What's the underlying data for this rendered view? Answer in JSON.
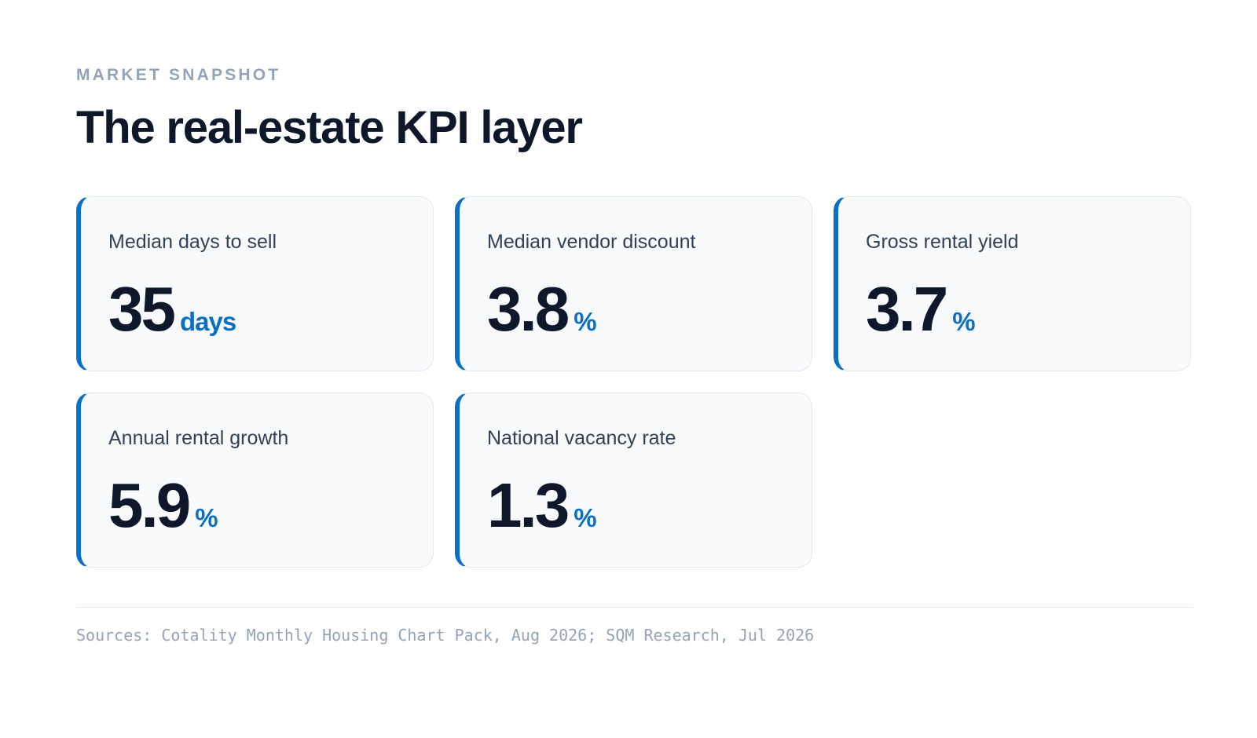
{
  "header": {
    "eyebrow": "MARKET SNAPSHOT",
    "title": "The real-estate KPI layer"
  },
  "kpis": [
    {
      "label": "Median days to sell",
      "value": "35",
      "unit": "days"
    },
    {
      "label": "Median vendor discount",
      "value": "3.8",
      "unit": "%"
    },
    {
      "label": "Gross rental yield",
      "value": "3.7",
      "unit": "%"
    },
    {
      "label": "Annual rental growth",
      "value": "5.9",
      "unit": "%"
    },
    {
      "label": "National vacancy rate",
      "value": "1.3",
      "unit": "%"
    }
  ],
  "footer": {
    "sources": "Sources: Cotality Monthly Housing Chart Pack, Aug 2026; SQM Research, Jul 2026"
  },
  "colors": {
    "accent": "#0b6fc4",
    "title": "#0f172a",
    "muted": "#94a3b8",
    "card_bg": "#f8fafc"
  }
}
